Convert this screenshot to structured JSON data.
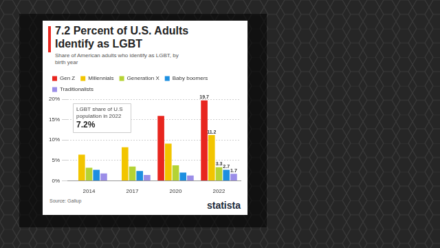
{
  "chart_data": {
    "type": "bar",
    "title": "7.2 Percent of U.S. Adults Identify as LGBT",
    "subtitle": "Share of American adults who identify as LGBT, by birth year",
    "categories": [
      "2014",
      "2017",
      "2020",
      "2022"
    ],
    "series": [
      {
        "name": "Gen Z",
        "color": "#e8261f",
        "values": [
          null,
          null,
          15.9,
          19.7
        ],
        "value_labels": [
          null,
          null,
          null,
          "19.7"
        ]
      },
      {
        "name": "Millennials",
        "color": "#f2c500",
        "values": [
          6.4,
          8.2,
          9.1,
          11.2
        ],
        "value_labels": [
          null,
          null,
          null,
          "11.2"
        ]
      },
      {
        "name": "Generation X",
        "color": "#b5d334",
        "values": [
          3.2,
          3.5,
          3.8,
          3.3
        ],
        "value_labels": [
          null,
          null,
          null,
          "3.3"
        ]
      },
      {
        "name": "Baby boomers",
        "color": "#1d8fe0",
        "values": [
          2.7,
          2.4,
          2.0,
          2.7
        ],
        "value_labels": [
          null,
          null,
          null,
          "2.7"
        ]
      },
      {
        "name": "Traditionalists",
        "color": "#9b8ee8",
        "values": [
          1.8,
          1.4,
          1.3,
          1.7
        ],
        "value_labels": [
          null,
          null,
          null,
          "1.7"
        ]
      }
    ],
    "ylim": [
      0,
      20
    ],
    "yticks": [
      {
        "value": 0,
        "label": "0%"
      },
      {
        "value": 5,
        "label": "5%"
      },
      {
        "value": 10,
        "label": "10%"
      },
      {
        "value": 15,
        "label": "15%"
      },
      {
        "value": 20,
        "label": "20%"
      }
    ],
    "grid": true,
    "legend": "top",
    "annotation": [
      "LGBT share of U.S population in 2022",
      "7.2%"
    ],
    "source": "Source: Gallup",
    "logo": "statista"
  }
}
